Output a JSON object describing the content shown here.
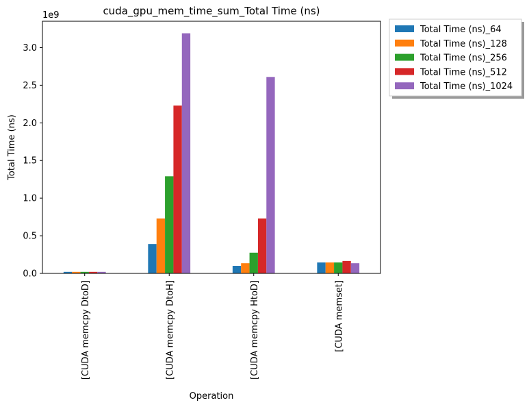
{
  "chart_data": {
    "type": "bar",
    "title": "cuda_gpu_mem_time_sum_Total Time (ns)",
    "xlabel": "Operation",
    "ylabel": "Total Time (ns)",
    "y_offset_label": "1e9",
    "ylim": [
      0,
      3.35
    ],
    "yticks": [
      "0.0",
      "0.5",
      "1.0",
      "1.5",
      "2.0",
      "2.5",
      "3.0"
    ],
    "categories": [
      "[CUDA memcpy DtoD]",
      "[CUDA memcpy DtoH]",
      "[CUDA memcpy HtoD]",
      "[CUDA memset]"
    ],
    "grid": false,
    "legend_position": "outside-top-right",
    "series": [
      {
        "name": "Total Time (ns)_64",
        "color": "#1f77b4",
        "values": [
          0.02,
          0.39,
          0.1,
          0.145
        ]
      },
      {
        "name": "Total Time (ns)_128",
        "color": "#ff7f0e",
        "values": [
          0.02,
          0.73,
          0.135,
          0.145
        ]
      },
      {
        "name": "Total Time (ns)_256",
        "color": "#2ca02c",
        "values": [
          0.02,
          1.29,
          0.275,
          0.145
        ]
      },
      {
        "name": "Total Time (ns)_512",
        "color": "#d62728",
        "values": [
          0.02,
          2.23,
          0.73,
          0.165
        ]
      },
      {
        "name": "Total Time (ns)_1024",
        "color": "#9467bd",
        "values": [
          0.02,
          3.19,
          2.61,
          0.135
        ]
      }
    ]
  }
}
